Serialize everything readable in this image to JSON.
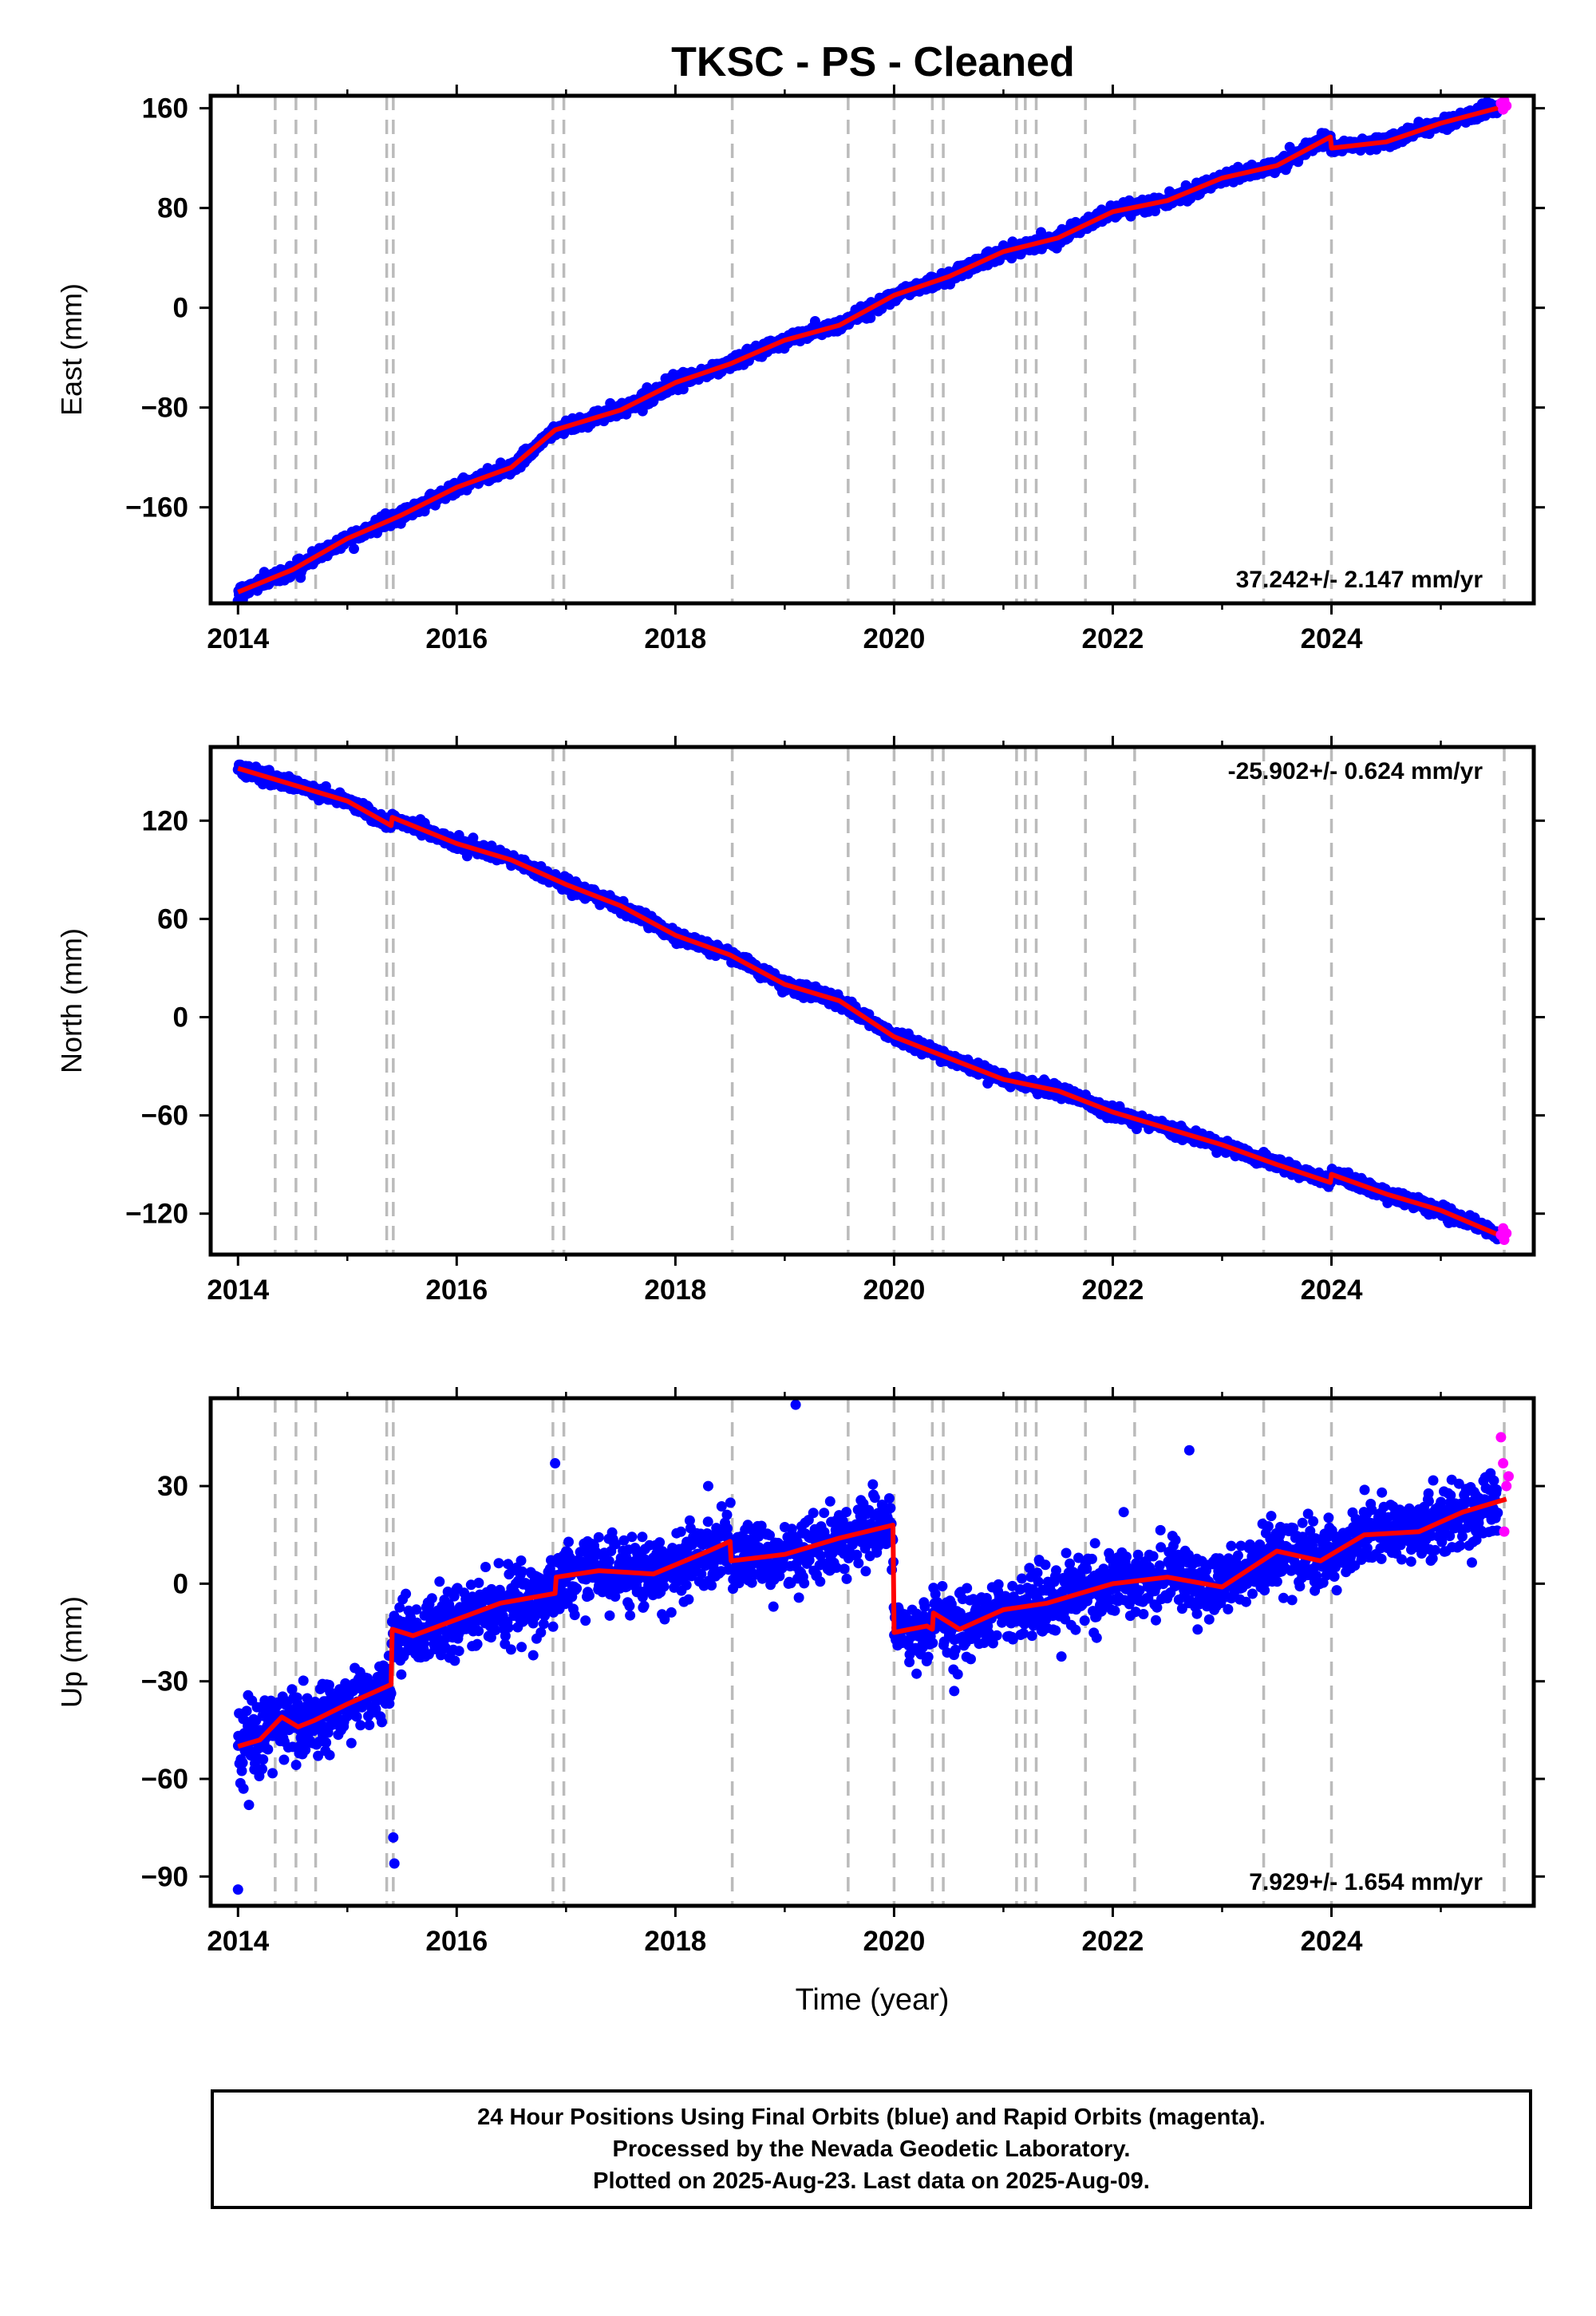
{
  "title": "TKSC  - PS - Cleaned",
  "colors": {
    "final_orbits": "#0000ff",
    "rapid_orbits": "#ff00ff",
    "model": "#ff0000",
    "steps": "#bbbbbb",
    "frame": "#000000"
  },
  "footer": {
    "line1": "24 Hour Positions Using Final Orbits (blue) and Rapid Orbits (magenta).",
    "line2": "Processed by the Nevada Geodetic Laboratory.",
    "line3": "Plotted on 2025-Aug-23. Last data on 2025-Aug-09."
  },
  "chart_data": [
    {
      "type": "scatter",
      "panel": "east",
      "ylabel": "East (mm)",
      "xlabel": "",
      "xlim": [
        2013.75,
        2025.85
      ],
      "ylim": [
        -237,
        170
      ],
      "xticks": [
        2014,
        2016,
        2018,
        2020,
        2022,
        2024
      ],
      "xtick_labels": [
        "2014",
        "2016",
        "2018",
        "2020",
        "2022",
        "2024"
      ],
      "yticks": [
        160,
        80,
        0,
        -80,
        -160
      ],
      "ytick_labels": [
        "160",
        "80",
        "0",
        "−80",
        "−160"
      ],
      "rate_text": "37.242+/- 2.147 mm/yr",
      "rate_position": "bottom-right",
      "model_breaks": [
        [
          2015.4,
          2
        ],
        [
          2024.0,
          -8
        ]
      ],
      "model_line": {
        "x": [
          2014.0,
          2014.5,
          2015.0,
          2015.4,
          2015.5,
          2016.0,
          2016.5,
          2016.9,
          2017.5,
          2018.0,
          2018.5,
          2019.0,
          2019.5,
          2020.0,
          2020.5,
          2021.0,
          2021.5,
          2022.0,
          2022.5,
          2023.0,
          2023.5,
          2023.99,
          2024.0,
          2024.5,
          2025.0,
          2025.6
        ],
        "y": [
          -228,
          -210,
          -185,
          -170,
          -166,
          -144,
          -128,
          -98,
          -82,
          -60,
          -45,
          -26,
          -14,
          10,
          25,
          45,
          56,
          77,
          86,
          104,
          114,
          137,
          128,
          133,
          148,
          162
        ]
      },
      "noise_mm": 2.5,
      "outliers": [],
      "rapid_points": {
        "x": [
          2025.55,
          2025.57,
          2025.58,
          2025.6
        ],
        "y": [
          164,
          159,
          166,
          162
        ]
      },
      "series": [
        {
          "name": "Final Orbits",
          "color": "#0000ff"
        },
        {
          "name": "Rapid Orbits",
          "color": "#ff00ff"
        }
      ]
    },
    {
      "type": "scatter",
      "panel": "north",
      "ylabel": "North (mm)",
      "xlabel": "",
      "xlim": [
        2013.75,
        2025.85
      ],
      "ylim": [
        -145,
        165
      ],
      "xticks": [
        2014,
        2016,
        2018,
        2020,
        2022,
        2024
      ],
      "xtick_labels": [
        "2014",
        "2016",
        "2018",
        "2020",
        "2022",
        "2024"
      ],
      "yticks": [
        120,
        60,
        0,
        -60,
        -120
      ],
      "ytick_labels": [
        "120",
        "60",
        "0",
        "−60",
        "−120"
      ],
      "rate_text": "-25.902+/- 0.624 mm/yr",
      "rate_position": "top-right",
      "model_line": {
        "x": [
          2014.0,
          2014.5,
          2015.0,
          2015.4,
          2015.41,
          2016.0,
          2016.5,
          2017.0,
          2017.5,
          2018.0,
          2018.5,
          2019.0,
          2019.5,
          2020.0,
          2020.5,
          2021.0,
          2021.5,
          2022.0,
          2022.5,
          2023.0,
          2023.5,
          2023.99,
          2024.0,
          2024.5,
          2025.0,
          2025.6
        ],
        "y": [
          152,
          142,
          132,
          117,
          122,
          106,
          96,
          81,
          68,
          50,
          38,
          20,
          10,
          -12,
          -25,
          -38,
          -45,
          -58,
          -68,
          -78,
          -90,
          -101,
          -96,
          -108,
          -118,
          -135
        ]
      },
      "noise_mm": 1.8,
      "outliers": [],
      "rapid_points": {
        "x": [
          2025.55,
          2025.57,
          2025.58,
          2025.6
        ],
        "y": [
          -133,
          -129,
          -136,
          -132
        ]
      },
      "series": [
        {
          "name": "Final Orbits",
          "color": "#0000ff"
        },
        {
          "name": "Rapid Orbits",
          "color": "#ff00ff"
        }
      ]
    },
    {
      "type": "scatter",
      "panel": "up",
      "ylabel": "Up (mm)",
      "xlabel": "Time (year)",
      "xlim": [
        2013.75,
        2025.85
      ],
      "ylim": [
        -99,
        57
      ],
      "xticks": [
        2014,
        2016,
        2018,
        2020,
        2022,
        2024
      ],
      "xtick_labels": [
        "2014",
        "2016",
        "2018",
        "2020",
        "2022",
        "2024"
      ],
      "yticks": [
        30,
        0,
        -30,
        -60,
        -90
      ],
      "ytick_labels": [
        "30",
        "0",
        "−30",
        "−60",
        "−90"
      ],
      "rate_text": "7.929+/- 1.654 mm/yr",
      "rate_position": "bottom-right",
      "model_line": {
        "x": [
          2014.0,
          2014.2,
          2014.4,
          2014.55,
          2014.7,
          2015.0,
          2015.4,
          2015.41,
          2015.6,
          2016.0,
          2016.4,
          2016.9,
          2016.91,
          2017.3,
          2017.8,
          2018.3,
          2018.5,
          2018.51,
          2019.0,
          2019.5,
          2019.99,
          2020.0,
          2020.3,
          2020.35,
          2020.36,
          2020.6,
          2021.0,
          2021.4,
          2022.0,
          2022.5,
          2023.0,
          2023.5,
          2023.9,
          2024.3,
          2024.8,
          2025.2,
          2025.6
        ],
        "y": [
          -50,
          -48,
          -41,
          -44,
          -42,
          -37,
          -31,
          -14,
          -16,
          -11,
          -6,
          -3,
          2,
          4,
          3,
          10,
          13,
          7,
          9,
          14,
          18,
          -15,
          -13,
          -14,
          -9,
          -14,
          -8,
          -6,
          0,
          2,
          -1,
          10,
          7,
          15,
          16,
          22,
          26
        ]
      },
      "noise_mm": 5,
      "outliers": [
        {
          "x": 2014.0,
          "y": -94
        },
        {
          "x": 2014.1,
          "y": -68
        },
        {
          "x": 2014.05,
          "y": -63
        },
        {
          "x": 2015.42,
          "y": -78
        },
        {
          "x": 2015.43,
          "y": -86
        },
        {
          "x": 2016.9,
          "y": 37
        },
        {
          "x": 2019.1,
          "y": 55
        },
        {
          "x": 2022.7,
          "y": 41
        },
        {
          "x": 2016.7,
          "y": -22
        },
        {
          "x": 2018.3,
          "y": 30
        },
        {
          "x": 2020.55,
          "y": -33
        },
        {
          "x": 2022.1,
          "y": 22
        }
      ],
      "rapid_points": {
        "x": [
          2025.55,
          2025.57,
          2025.58,
          2025.6,
          2025.62
        ],
        "y": [
          45,
          37,
          16,
          30,
          33
        ]
      },
      "series": [
        {
          "name": "Final Orbits",
          "color": "#0000ff"
        },
        {
          "name": "Rapid Orbits",
          "color": "#ff00ff"
        }
      ]
    }
  ],
  "step_lines_years": [
    2014.34,
    2014.53,
    2014.71,
    2015.36,
    2015.42,
    2016.88,
    2016.98,
    2018.52,
    2019.58,
    2020.0,
    2020.35,
    2020.45,
    2021.12,
    2021.2,
    2021.3,
    2021.75,
    2022.2,
    2023.38,
    2024.0,
    2025.58
  ]
}
